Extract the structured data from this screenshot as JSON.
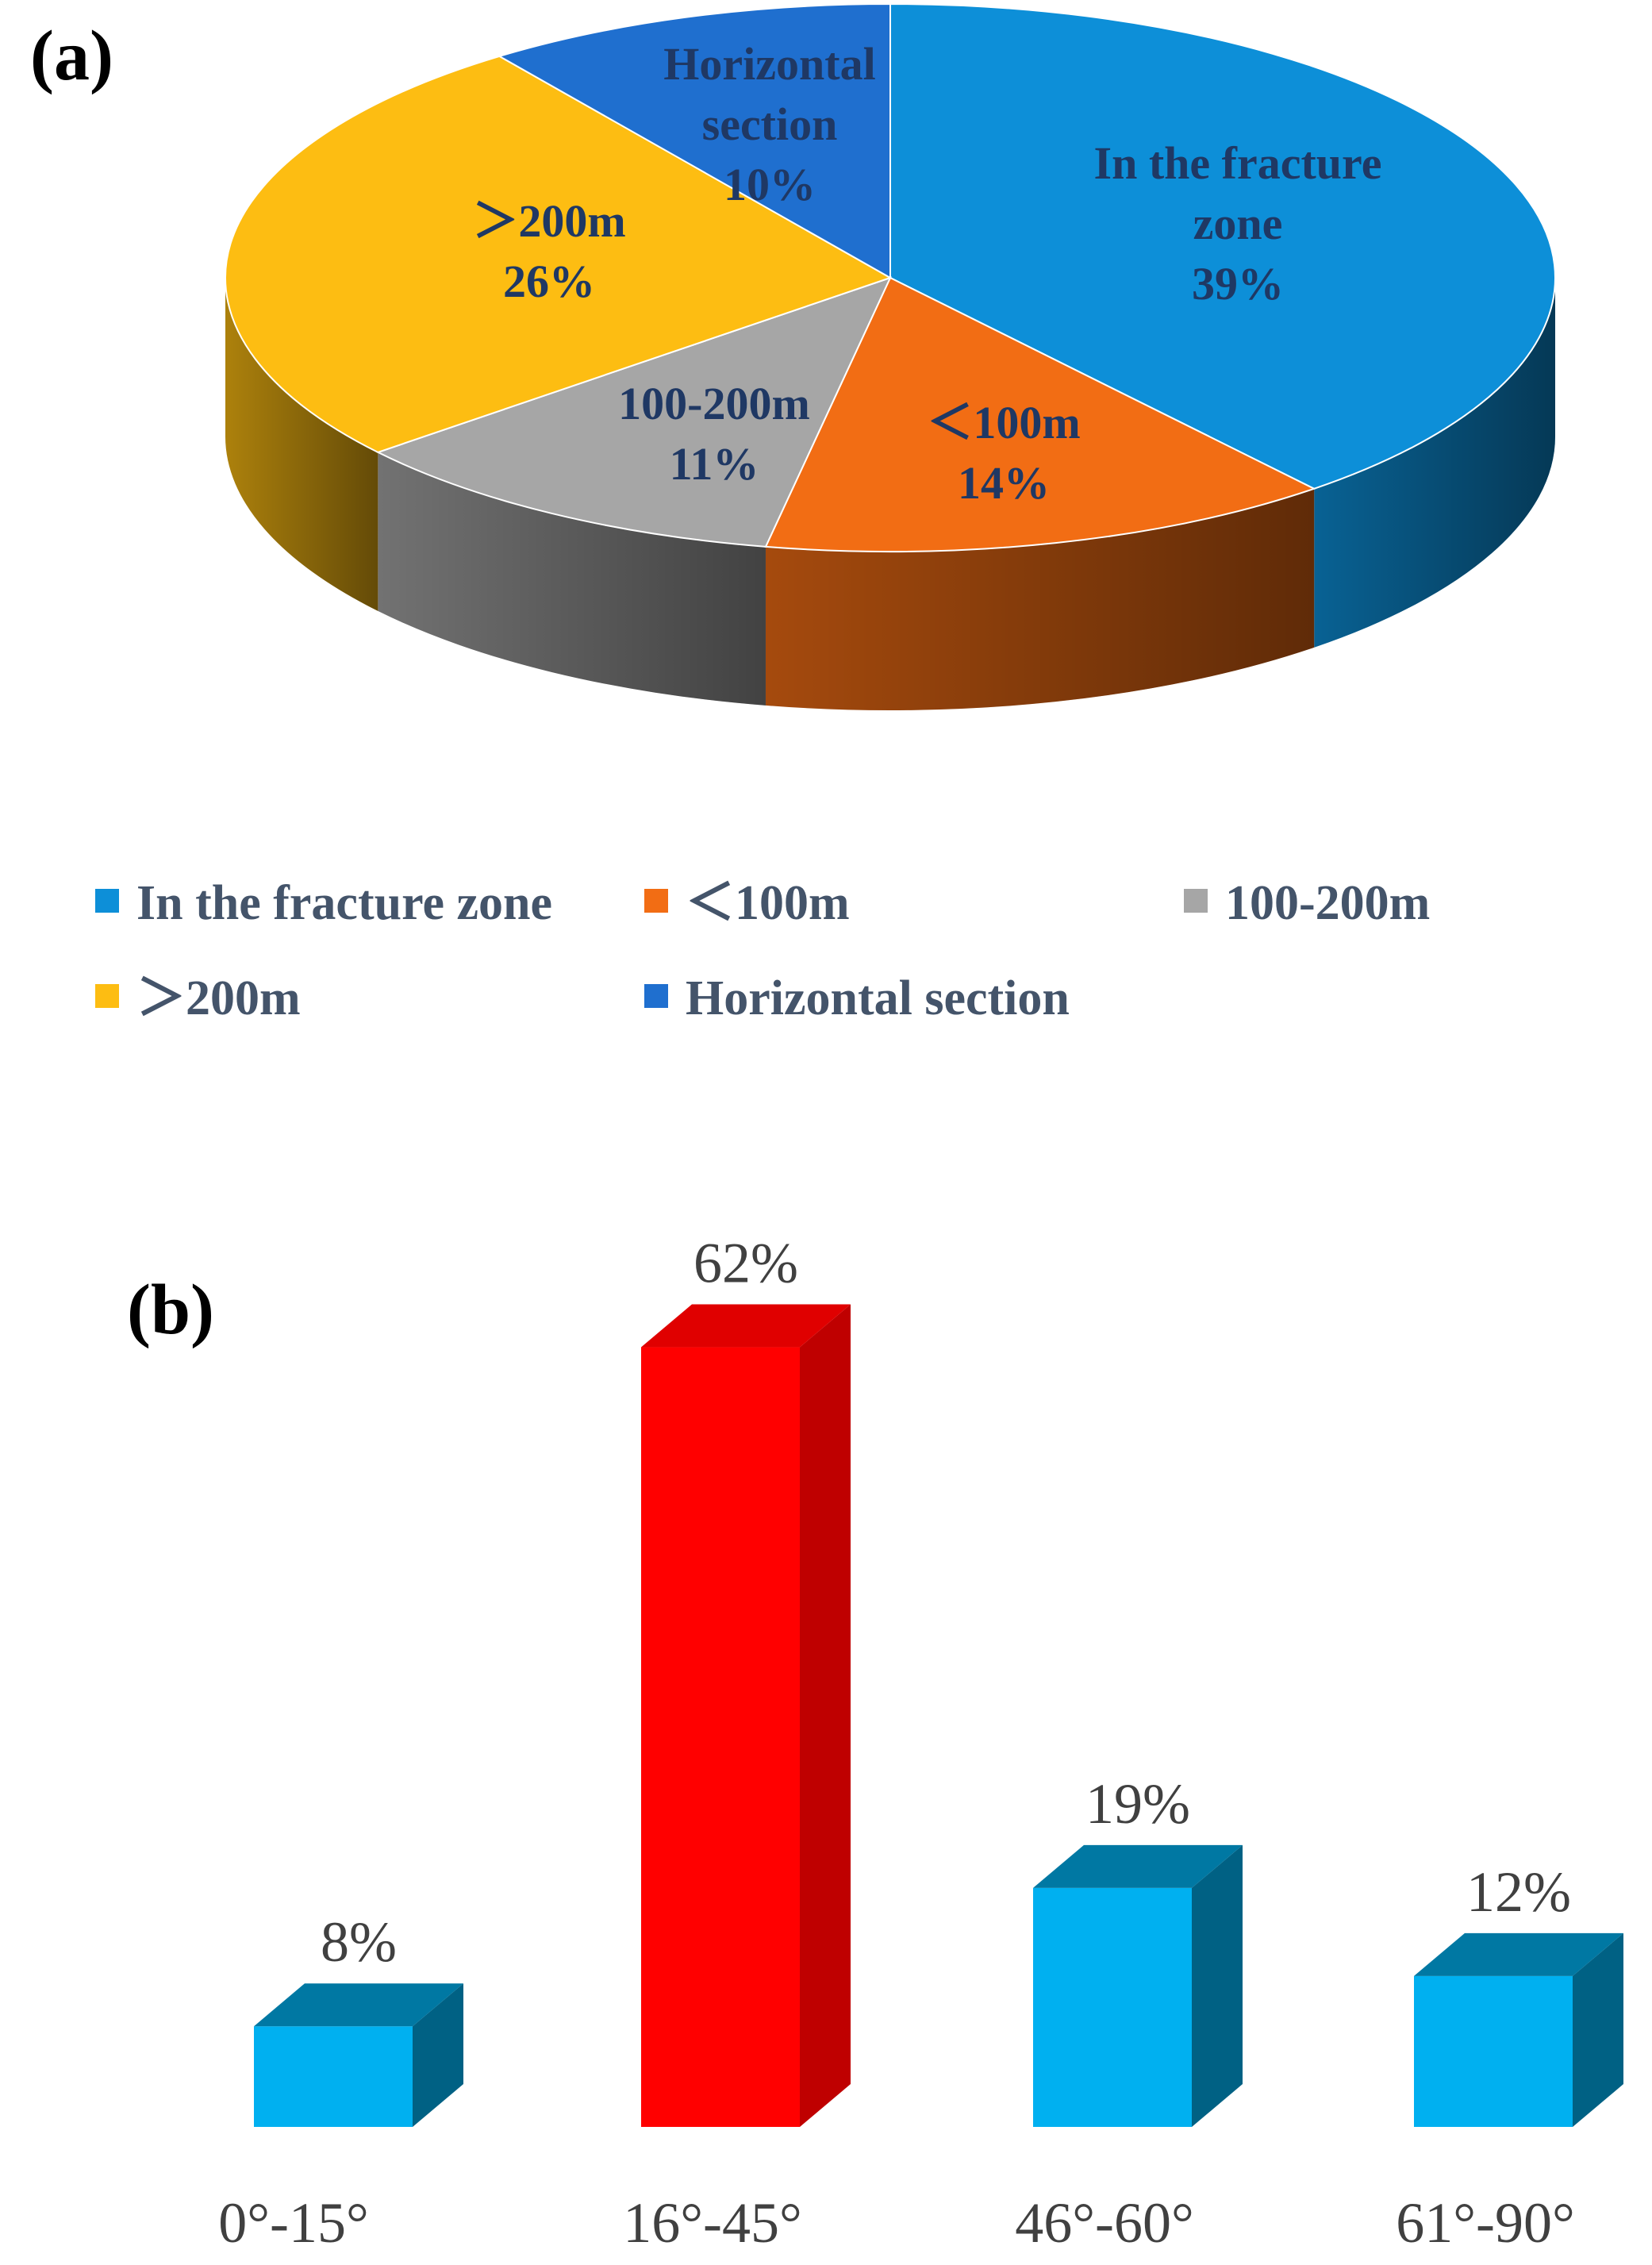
{
  "panel_a": {
    "letter": "(a)"
  },
  "panel_b": {
    "letter": "(b)"
  },
  "chart_data": [
    {
      "type": "pie",
      "style": "3d",
      "slices": [
        {
          "name": "In the fracture zone",
          "label_lines": [
            "In the fracture",
            "zone",
            "39%"
          ],
          "value": 39,
          "color": "#0d8fd8",
          "label_color": "#1f3864"
        },
        {
          "name": "＜100m",
          "label_lines": [
            "＜100m",
            "14%"
          ],
          "value": 14,
          "color": "#f26d14",
          "label_color": "#1f3864"
        },
        {
          "name": "100-200m",
          "label_lines": [
            "100-200m",
            "11%"
          ],
          "value": 11,
          "color": "#a6a6a6",
          "label_color": "#1f3864"
        },
        {
          "name": "＞200m",
          "label_lines": [
            "＞200m",
            "26%"
          ],
          "value": 26,
          "color": "#fdbd12",
          "label_color": "#1f3864"
        },
        {
          "name": "Horizontal section",
          "label_lines": [
            "Horizontal",
            "section",
            "10%"
          ],
          "value": 10,
          "color": "#1f6fcf",
          "label_color": "#1f3864"
        }
      ],
      "legend": {
        "placement": "bottom",
        "items": [
          "In the fracture zone",
          "＜100m",
          "100-200m",
          "＞200m",
          "Horizontal section"
        ]
      }
    },
    {
      "type": "bar",
      "style": "3d",
      "categories": [
        "0°-15°",
        "16°-45°",
        "46°-60°",
        "61°-90°"
      ],
      "values": [
        8,
        62,
        19,
        12
      ],
      "data_labels": [
        "8%",
        "62%",
        "19%",
        "12%"
      ],
      "colors": [
        "#00b0f0",
        "#ff0000",
        "#00b0f0",
        "#00b0f0"
      ],
      "ylim": [
        0,
        65
      ],
      "grid": false,
      "xlabel": "",
      "ylabel": ""
    }
  ]
}
